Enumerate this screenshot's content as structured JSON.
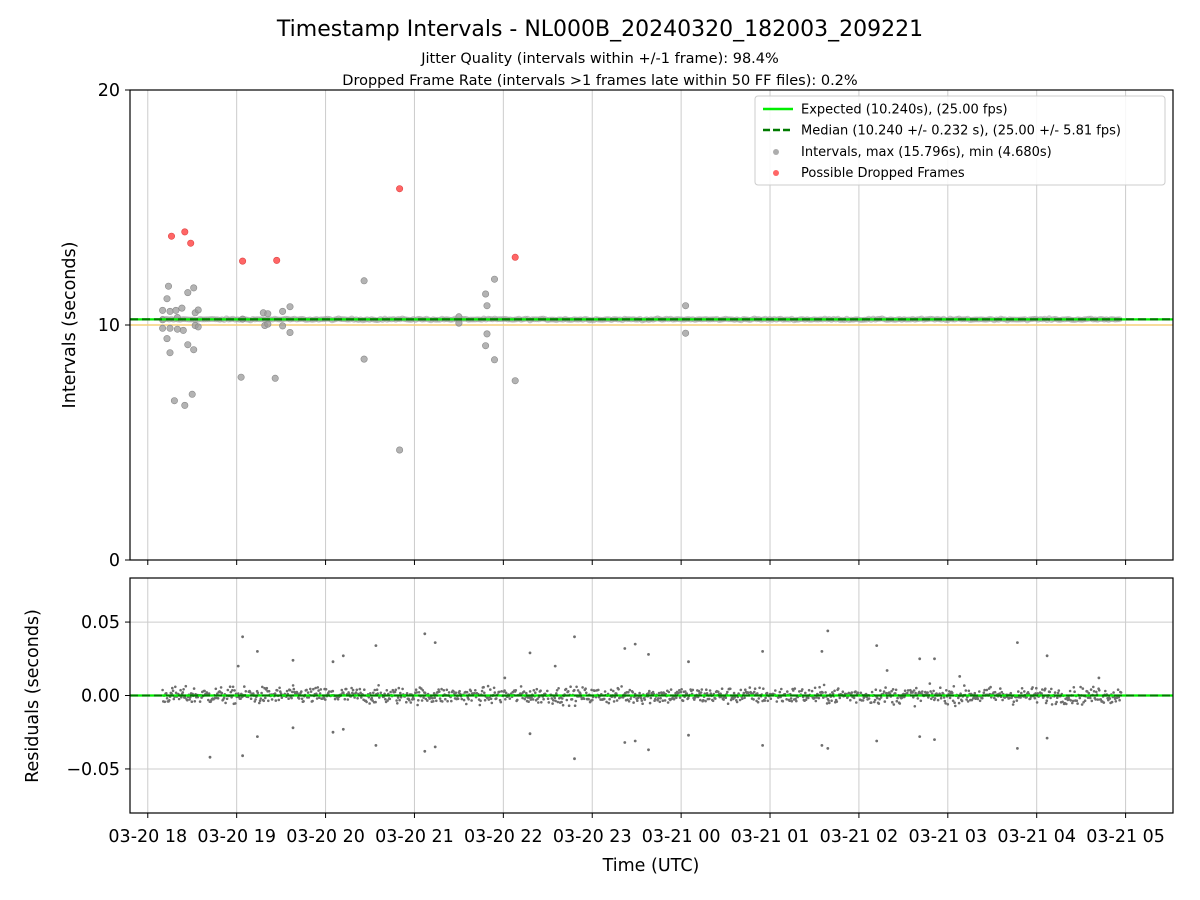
{
  "chart_data": [
    {
      "type": "scatter",
      "title": "Timestamp Intervals - NL000B_20240320_182003_209221",
      "subtitle_lines": [
        "Jitter Quality (intervals within +/-1 frame): 98.4%",
        "Dropped Frame Rate (intervals >1 frames late within 50 FF files): 0.2%"
      ],
      "xlabel": "",
      "ylabel": "Intervals (seconds)",
      "xlim": [
        "2024-03-20T17:48",
        "2024-03-21T05:32"
      ],
      "ylim": [
        0,
        20
      ],
      "yticks": [
        0,
        10,
        20
      ],
      "grid": "vertical",
      "legend_position": "top-right",
      "reference_lines": [
        {
          "name": "Expected (10.240s), (25.00 fps)",
          "y": 10.24,
          "style": "solid",
          "color": "#00ee00"
        },
        {
          "name": "Median (10.240 +/- 0.232 s), (25.00 +/- 5.81 fps)",
          "y": 10.24,
          "style": "dashed",
          "color": "#007a00"
        }
      ],
      "bands": [
        {
          "y": 10.0,
          "color": "#f5d078"
        }
      ],
      "series": [
        {
          "name": "Intervals, max (15.796s), min (4.680s)",
          "color": "#999999",
          "points": [
            [
              "2024-03-20T18:10",
              10.62
            ],
            [
              "2024-03-20T18:10",
              10.22
            ],
            [
              "2024-03-20T18:10",
              9.86
            ],
            [
              "2024-03-20T18:14",
              11.65
            ],
            [
              "2024-03-20T18:13",
              11.12
            ],
            [
              "2024-03-20T18:15",
              10.58
            ],
            [
              "2024-03-20T18:13",
              9.42
            ],
            [
              "2024-03-20T18:15",
              9.86
            ],
            [
              "2024-03-20T18:15",
              8.82
            ],
            [
              "2024-03-20T18:18",
              6.78
            ],
            [
              "2024-03-20T18:19",
              10.62
            ],
            [
              "2024-03-20T18:20",
              10.32
            ],
            [
              "2024-03-20T18:20",
              9.82
            ],
            [
              "2024-03-20T18:23",
              10.72
            ],
            [
              "2024-03-20T18:24",
              9.77
            ],
            [
              "2024-03-20T18:25",
              6.58
            ],
            [
              "2024-03-20T18:27",
              11.38
            ],
            [
              "2024-03-20T18:27",
              9.16
            ],
            [
              "2024-03-20T18:30",
              7.05
            ],
            [
              "2024-03-20T18:31",
              11.58
            ],
            [
              "2024-03-20T18:32",
              10.52
            ],
            [
              "2024-03-20T18:32",
              9.98
            ],
            [
              "2024-03-20T18:31",
              8.95
            ],
            [
              "2024-03-20T18:34",
              10.64
            ],
            [
              "2024-03-20T18:34",
              9.92
            ],
            [
              "2024-03-20T19:03",
              7.78
            ],
            [
              "2024-03-20T19:04",
              10.25
            ],
            [
              "2024-03-20T19:18",
              10.52
            ],
            [
              "2024-03-20T19:19",
              9.98
            ],
            [
              "2024-03-20T19:21",
              10.48
            ],
            [
              "2024-03-20T19:21",
              10.04
            ],
            [
              "2024-03-20T19:26",
              7.73
            ],
            [
              "2024-03-20T19:31",
              10.58
            ],
            [
              "2024-03-20T19:31",
              9.96
            ],
            [
              "2024-03-20T19:36",
              10.78
            ],
            [
              "2024-03-20T19:36",
              9.68
            ],
            [
              "2024-03-20T20:26",
              11.88
            ],
            [
              "2024-03-20T20:26",
              8.55
            ],
            [
              "2024-03-20T20:50",
              4.68
            ],
            [
              "2024-03-20T21:30",
              10.35
            ],
            [
              "2024-03-20T21:30",
              10.08
            ],
            [
              "2024-03-20T21:48",
              11.32
            ],
            [
              "2024-03-20T21:49",
              10.82
            ],
            [
              "2024-03-20T21:49",
              9.62
            ],
            [
              "2024-03-20T21:48",
              9.12
            ],
            [
              "2024-03-20T21:54",
              11.95
            ],
            [
              "2024-03-20T21:54",
              8.52
            ],
            [
              "2024-03-20T22:08",
              7.63
            ],
            [
              "2024-03-21T00:03",
              10.82
            ],
            [
              "2024-03-21T00:03",
              9.65
            ]
          ]
        },
        {
          "name": "Possible Dropped Frames",
          "color": "#ff5555",
          "points": [
            [
              "2024-03-20T18:16",
              13.78
            ],
            [
              "2024-03-20T18:25",
              13.96
            ],
            [
              "2024-03-20T18:29",
              13.48
            ],
            [
              "2024-03-20T19:04",
              12.72
            ],
            [
              "2024-03-20T19:27",
              12.75
            ],
            [
              "2024-03-20T20:50",
              15.8
            ],
            [
              "2024-03-20T22:08",
              12.88
            ]
          ]
        }
      ],
      "baseline_band": {
        "from": "2024-03-20T18:10",
        "to": "2024-03-21T04:57",
        "y": 10.24,
        "spread": 0.05
      }
    },
    {
      "type": "scatter",
      "title": "",
      "xlabel": "Time (UTC)",
      "ylabel": "Residuals (seconds)",
      "xlim": [
        "2024-03-20T17:48",
        "2024-03-21T05:32"
      ],
      "ylim": [
        -0.08,
        0.08
      ],
      "yticks": [
        0.05,
        0.0,
        -0.05
      ],
      "ytick_labels": [
        "0.05",
        "0.00",
        "−0.05"
      ],
      "xticks": [
        "2024-03-20T18:00",
        "2024-03-20T19:00",
        "2024-03-20T20:00",
        "2024-03-20T21:00",
        "2024-03-20T22:00",
        "2024-03-20T23:00",
        "2024-03-21T00:00",
        "2024-03-21T01:00",
        "2024-03-21T02:00",
        "2024-03-21T03:00",
        "2024-03-21T04:00",
        "2024-03-21T05:00"
      ],
      "xtick_labels": [
        "03-20 18",
        "03-20 19",
        "03-20 20",
        "03-20 21",
        "03-20 22",
        "03-20 23",
        "03-21 00",
        "03-21 01",
        "03-21 02",
        "03-21 03",
        "03-21 04",
        "03-21 05"
      ],
      "grid": "both",
      "zero_line": {
        "y": 0.0,
        "color": "#00ee00",
        "median_color": "#007a00"
      },
      "series": [
        {
          "name": "",
          "color": "#6e6e6e",
          "range": {
            "from": "2024-03-20T18:10",
            "to": "2024-03-21T04:57"
          },
          "typical_spread": 0.008,
          "outliers": [
            [
              "2024-03-20T19:01",
              0.02
            ],
            [
              "2024-03-20T19:04",
              0.04
            ],
            [
              "2024-03-20T19:04",
              -0.041
            ],
            [
              "2024-03-20T18:42",
              -0.042
            ],
            [
              "2024-03-20T19:14",
              0.03
            ],
            [
              "2024-03-20T19:14",
              -0.028
            ],
            [
              "2024-03-20T19:38",
              0.024
            ],
            [
              "2024-03-20T19:38",
              -0.022
            ],
            [
              "2024-03-20T20:05",
              0.023
            ],
            [
              "2024-03-20T20:05",
              -0.025
            ],
            [
              "2024-03-20T20:12",
              0.027
            ],
            [
              "2024-03-20T20:12",
              -0.023
            ],
            [
              "2024-03-20T20:34",
              0.034
            ],
            [
              "2024-03-20T20:34",
              -0.034
            ],
            [
              "2024-03-20T21:07",
              0.042
            ],
            [
              "2024-03-20T21:07",
              -0.038
            ],
            [
              "2024-03-20T21:14",
              0.036
            ],
            [
              "2024-03-20T21:14",
              -0.035
            ],
            [
              "2024-03-20T22:01",
              0.012
            ],
            [
              "2024-03-20T22:18",
              0.029
            ],
            [
              "2024-03-20T22:18",
              -0.026
            ],
            [
              "2024-03-20T22:35",
              0.02
            ],
            [
              "2024-03-20T22:48",
              0.04
            ],
            [
              "2024-03-20T22:48",
              -0.043
            ],
            [
              "2024-03-20T23:22",
              0.032
            ],
            [
              "2024-03-20T23:22",
              -0.032
            ],
            [
              "2024-03-20T23:29",
              0.035
            ],
            [
              "2024-03-20T23:29",
              -0.031
            ],
            [
              "2024-03-20T23:38",
              0.028
            ],
            [
              "2024-03-20T23:38",
              -0.037
            ],
            [
              "2024-03-21T00:05",
              0.023
            ],
            [
              "2024-03-21T00:05",
              -0.027
            ],
            [
              "2024-03-21T00:55",
              0.03
            ],
            [
              "2024-03-21T00:55",
              -0.034
            ],
            [
              "2024-03-21T01:35",
              0.03
            ],
            [
              "2024-03-21T01:35",
              -0.034
            ],
            [
              "2024-03-21T01:39",
              0.044
            ],
            [
              "2024-03-21T01:39",
              -0.036
            ],
            [
              "2024-03-21T02:12",
              0.034
            ],
            [
              "2024-03-21T02:12",
              -0.031
            ],
            [
              "2024-03-21T02:19",
              0.017
            ],
            [
              "2024-03-21T02:41",
              0.025
            ],
            [
              "2024-03-21T02:41",
              -0.028
            ],
            [
              "2024-03-21T02:51",
              0.025
            ],
            [
              "2024-03-21T02:51",
              -0.03
            ],
            [
              "2024-03-21T03:08",
              0.013
            ],
            [
              "2024-03-21T03:47",
              0.036
            ],
            [
              "2024-03-21T03:47",
              -0.036
            ],
            [
              "2024-03-21T04:07",
              0.027
            ],
            [
              "2024-03-21T04:07",
              -0.029
            ],
            [
              "2024-03-21T04:42",
              0.012
            ]
          ]
        }
      ]
    }
  ]
}
